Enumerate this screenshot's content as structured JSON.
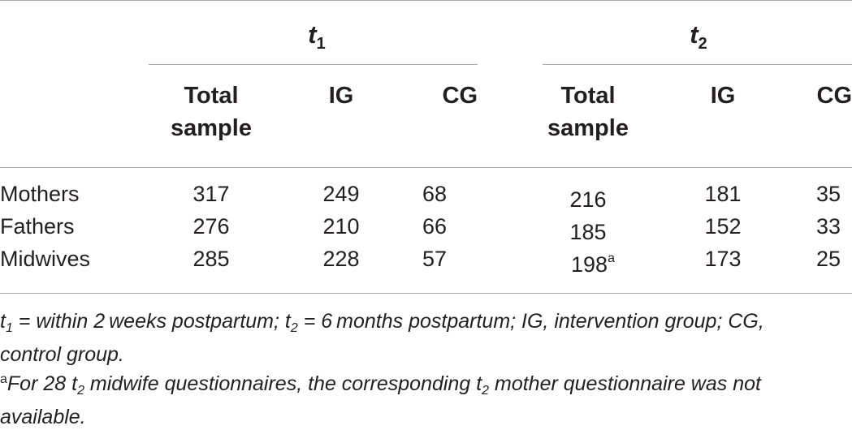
{
  "table": {
    "groups": {
      "g1_base": "t",
      "g1_sub": "1",
      "g2_base": "t",
      "g2_sub": "2"
    },
    "columns": {
      "total_line1": "Total",
      "total_line2": "sample",
      "ig": "IG",
      "cg": "CG"
    },
    "rows": [
      {
        "label": "Mothers",
        "t1_total": "317",
        "t1_ig": "249",
        "t1_cg": "68",
        "t2_total": "216",
        "t2_total_mark": "",
        "t2_ig": "181",
        "t2_cg": "35"
      },
      {
        "label": "Fathers",
        "t1_total": "276",
        "t1_ig": "210",
        "t1_cg": "66",
        "t2_total": "185",
        "t2_total_mark": "",
        "t2_ig": "152",
        "t2_cg": "33"
      },
      {
        "label": "Midwives",
        "t1_total": "285",
        "t1_ig": "228",
        "t1_cg": "57",
        "t2_total": "198",
        "t2_total_mark": "a",
        "t2_ig": "173",
        "t2_cg": "25"
      }
    ]
  },
  "footnotes": {
    "n1_t1_base": "t",
    "n1_t1_sub": "1",
    "n1_a": " = within 2 weeks postpartum; ",
    "n1_t2_base": "t",
    "n1_t2_sub": "2",
    "n1_b": " = 6 months postpartum; IG, intervention group; CG,",
    "n1_line2": "control group.",
    "n2_mark": "a",
    "n2_a": "For 28 ",
    "n2_t_base": "t",
    "n2_t_sub": "2",
    "n2_b": " midwife questionnaires, the corresponding ",
    "n2_t2_base": "t",
    "n2_t2_sub": "2",
    "n2_c": " mother questionnaire was not",
    "n2_line2": "available."
  }
}
